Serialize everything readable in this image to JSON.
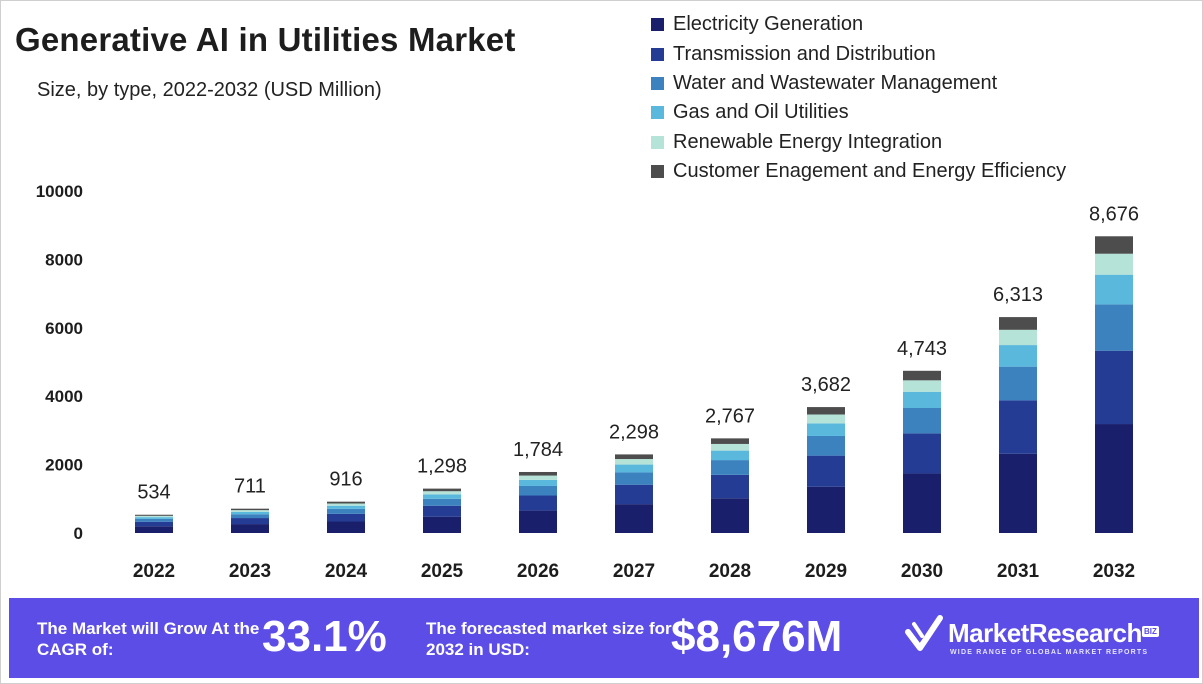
{
  "chart_data": {
    "type": "bar",
    "stacked": true,
    "title": "Generative AI in Utilities Market",
    "subtitle": "Size, by type, 2022-2032 (USD Million)",
    "categories": [
      "2022",
      "2023",
      "2024",
      "2025",
      "2026",
      "2027",
      "2028",
      "2029",
      "2030",
      "2031",
      "2032"
    ],
    "totals": [
      534,
      711,
      916,
      1298,
      1784,
      2298,
      2767,
      3682,
      4743,
      6313,
      8676
    ],
    "total_labels": [
      "534",
      "711",
      "916",
      "1,298",
      "1,784",
      "2,298",
      "2,767",
      "3,682",
      "4,743",
      "6,313",
      "8,676"
    ],
    "series": [
      {
        "name": "Electricity Generation",
        "color": "#1a1f6b",
        "values": [
          196,
          261,
          336,
          476,
          655,
          844,
          1016,
          1352,
          1742,
          2318,
          3186
        ]
      },
      {
        "name": "Transmission and Distribution",
        "color": "#243c94",
        "values": [
          132,
          176,
          226,
          321,
          441,
          568,
          684,
          910,
          1172,
          1560,
          2144
        ]
      },
      {
        "name": "Water and Wastewater Management",
        "color": "#3b82bf",
        "values": [
          83,
          111,
          143,
          203,
          279,
          359,
          432,
          575,
          741,
          986,
          1355
        ]
      },
      {
        "name": "Gas and Oil Utilities",
        "color": "#5bb8dd",
        "values": [
          53,
          71,
          92,
          130,
          178,
          230,
          277,
          368,
          474,
          631,
          868
        ]
      },
      {
        "name": "Renewable Energy Integration",
        "color": "#b6e3d8",
        "values": [
          38,
          50,
          65,
          92,
          126,
          162,
          195,
          260,
          335,
          446,
          613
        ]
      },
      {
        "name": "Customer Enagement and Energy Efficiency",
        "color": "#4d4d4d",
        "values": [
          32,
          42,
          54,
          76,
          105,
          135,
          163,
          217,
          279,
          372,
          510
        ]
      }
    ],
    "yticks": [
      0,
      2000,
      4000,
      6000,
      8000,
      10000
    ],
    "ylim": [
      0,
      10000
    ],
    "grid": false,
    "legend": "top-right"
  },
  "footer": {
    "cagr_label": "The Market will Grow At the CAGR of:",
    "cagr_value": "33.1%",
    "forecast_label": "The forecasted market size for 2032 in USD:",
    "forecast_value": "$8,676M",
    "brand_name": "MarketResearch",
    "brand_badge": "BIZ",
    "brand_tagline": "WIDE RANGE OF GLOBAL MARKET REPORTS",
    "brand_icon": "checkmark-logo-icon",
    "bg_color": "#5b4de6"
  }
}
